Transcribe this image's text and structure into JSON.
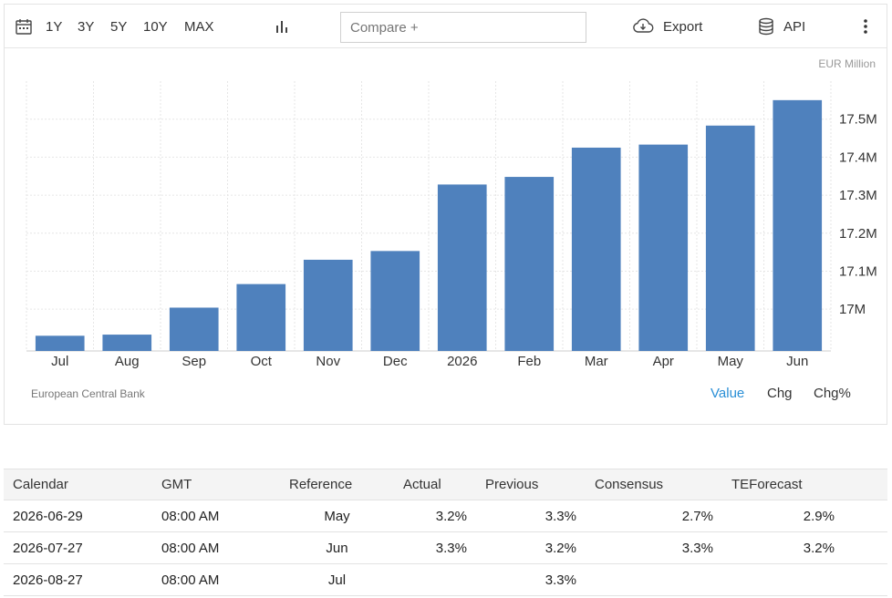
{
  "toolbar": {
    "ranges": [
      "1Y",
      "3Y",
      "5Y",
      "10Y",
      "MAX"
    ],
    "compare_placeholder": "Compare +",
    "export_label": "Export",
    "api_label": "API"
  },
  "chart_data": {
    "type": "bar",
    "categories": [
      "Jul",
      "Aug",
      "Sep",
      "Oct",
      "Nov",
      "Dec",
      "2026",
      "Feb",
      "Mar",
      "Apr",
      "May",
      "Jun"
    ],
    "values": [
      16.93,
      16.933,
      17.004,
      17.066,
      17.13,
      17.153,
      17.328,
      17.348,
      17.425,
      17.433,
      17.483,
      17.55
    ],
    "ylim": [
      16.89,
      17.6
    ],
    "yticks": [
      17.0,
      17.1,
      17.2,
      17.3,
      17.4,
      17.5
    ],
    "ytick_labels": [
      "17M",
      "17.1M",
      "17.2M",
      "17.3M",
      "17.4M",
      "17.5M"
    ],
    "unit_label": "EUR Million",
    "source": "European Central Bank",
    "bar_color": "#4f81bd",
    "grid": true,
    "modes": [
      "Value",
      "Chg",
      "Chg%"
    ],
    "active_mode": "Value"
  },
  "calendar": {
    "headers": [
      "Calendar",
      "GMT",
      "Reference",
      "Actual",
      "Previous",
      "Consensus",
      "TEForecast"
    ],
    "rows": [
      [
        "2026-06-29",
        "08:00 AM",
        "May",
        "3.2%",
        "3.3%",
        "2.7%",
        "2.9%"
      ],
      [
        "2026-07-27",
        "08:00 AM",
        "Jun",
        "3.3%",
        "3.2%",
        "3.3%",
        "3.2%"
      ],
      [
        "2026-08-27",
        "08:00 AM",
        "Jul",
        "",
        "3.3%",
        "",
        ""
      ]
    ]
  }
}
